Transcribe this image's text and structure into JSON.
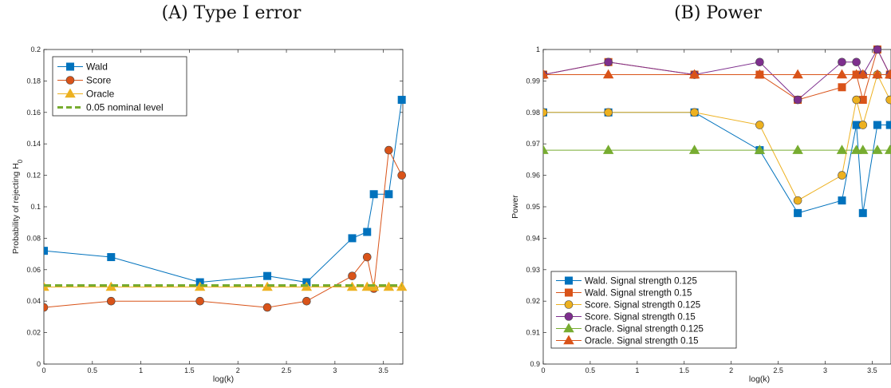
{
  "chart_data": [
    {
      "type": "line",
      "title": "(A) Type I error",
      "xlabel": "log(k)",
      "ylabel_main": "Probability of rejecting H",
      "ylabel_sub": "0",
      "xlim": [
        0,
        3.7
      ],
      "ylim": [
        0,
        0.2
      ],
      "xticks": [
        0,
        0.5,
        1,
        1.5,
        2,
        2.5,
        3,
        3.5
      ],
      "yticks": [
        0,
        0.02,
        0.04,
        0.06,
        0.08,
        0.1,
        0.12,
        0.14,
        0.16,
        0.18,
        0.2
      ],
      "ytick_labels": [
        "0",
        "0.02",
        "0.04",
        "0.06",
        "0.08",
        "0.1",
        "0.12",
        "0.14",
        "0.16",
        "0.18",
        "0.2"
      ],
      "xtick_labels": [
        "0",
        "0.5",
        "1",
        "1.5",
        "2",
        "2.5",
        "3",
        "3.5"
      ],
      "x": [
        0,
        0.693,
        1.609,
        2.303,
        2.708,
        3.178,
        3.332,
        3.401,
        3.555,
        3.689
      ],
      "legend_position": "top-left",
      "series": [
        {
          "name": "Wald",
          "color": "#0072BD",
          "marker": "square",
          "values": [
            0.072,
            0.068,
            0.052,
            0.056,
            0.052,
            0.08,
            0.084,
            0.108,
            0.108,
            0.168
          ]
        },
        {
          "name": "Score",
          "color": "#D95319",
          "marker": "circle",
          "values": [
            0.036,
            0.04,
            0.04,
            0.036,
            0.04,
            0.056,
            0.068,
            0.048,
            0.136,
            0.12
          ]
        },
        {
          "name": "Oracle",
          "color": "#EDB120",
          "marker": "triangle",
          "values": [
            0.049,
            0.049,
            0.049,
            0.049,
            0.049,
            0.049,
            0.049,
            0.049,
            0.049,
            0.049
          ]
        },
        {
          "name": "0.05 nominal level",
          "color": "#77AC30",
          "marker": "none",
          "dashed": true,
          "values": [
            0.05,
            0.05,
            0.05,
            0.05,
            0.05,
            0.05,
            0.05,
            0.05,
            0.05,
            0.05
          ]
        }
      ]
    },
    {
      "type": "line",
      "title": "(B) Power",
      "xlabel": "log(k)",
      "ylabel_main": "Power",
      "ylabel_sub": "",
      "xlim": [
        0,
        3.7
      ],
      "ylim": [
        0.9,
        1.0
      ],
      "xticks": [
        0,
        0.5,
        1,
        1.5,
        2,
        2.5,
        3,
        3.5
      ],
      "yticks": [
        0.9,
        0.91,
        0.92,
        0.93,
        0.94,
        0.95,
        0.96,
        0.97,
        0.98,
        0.99,
        1.0
      ],
      "ytick_labels": [
        "0.9",
        "0.91",
        "0.92",
        "0.93",
        "0.94",
        "0.95",
        "0.96",
        "0.97",
        "0.98",
        "0.99",
        "1"
      ],
      "xtick_labels": [
        "0",
        "0.5",
        "1",
        "1.5",
        "2",
        "2.5",
        "3",
        "3.5"
      ],
      "x": [
        0,
        0.693,
        1.609,
        2.303,
        2.708,
        3.178,
        3.332,
        3.401,
        3.555,
        3.689
      ],
      "legend_position": "bottom-left",
      "series": [
        {
          "name": "Wald. Signal strength 0.125",
          "color": "#0072BD",
          "marker": "square",
          "values": [
            0.98,
            0.98,
            0.98,
            0.968,
            0.948,
            0.952,
            0.976,
            0.948,
            0.976,
            0.976
          ]
        },
        {
          "name": "Wald. Signal strength 0.15",
          "color": "#D95319",
          "marker": "square",
          "values": [
            0.992,
            0.996,
            0.992,
            0.992,
            0.984,
            0.988,
            0.992,
            0.984,
            1.0,
            0.992
          ]
        },
        {
          "name": "Score. Signal strength 0.125",
          "color": "#EDB120",
          "marker": "circle",
          "values": [
            0.98,
            0.98,
            0.98,
            0.976,
            0.952,
            0.96,
            0.984,
            0.976,
            0.992,
            0.984
          ]
        },
        {
          "name": "Score. Signal strength 0.15",
          "color": "#7E2F8E",
          "marker": "circle",
          "values": [
            0.992,
            0.996,
            0.992,
            0.996,
            0.984,
            0.996,
            0.996,
            0.992,
            1.0,
            0.992
          ]
        },
        {
          "name": "Oracle. Signal strength 0.125",
          "color": "#77AC30",
          "marker": "triangle",
          "values": [
            0.968,
            0.968,
            0.968,
            0.968,
            0.968,
            0.968,
            0.968,
            0.968,
            0.968,
            0.968
          ]
        },
        {
          "name": "Oracle. Signal strength 0.15",
          "color": "#D95319",
          "marker": "triangle",
          "values": [
            0.992,
            0.992,
            0.992,
            0.992,
            0.992,
            0.992,
            0.992,
            0.992,
            0.992,
            0.992
          ]
        }
      ]
    }
  ]
}
